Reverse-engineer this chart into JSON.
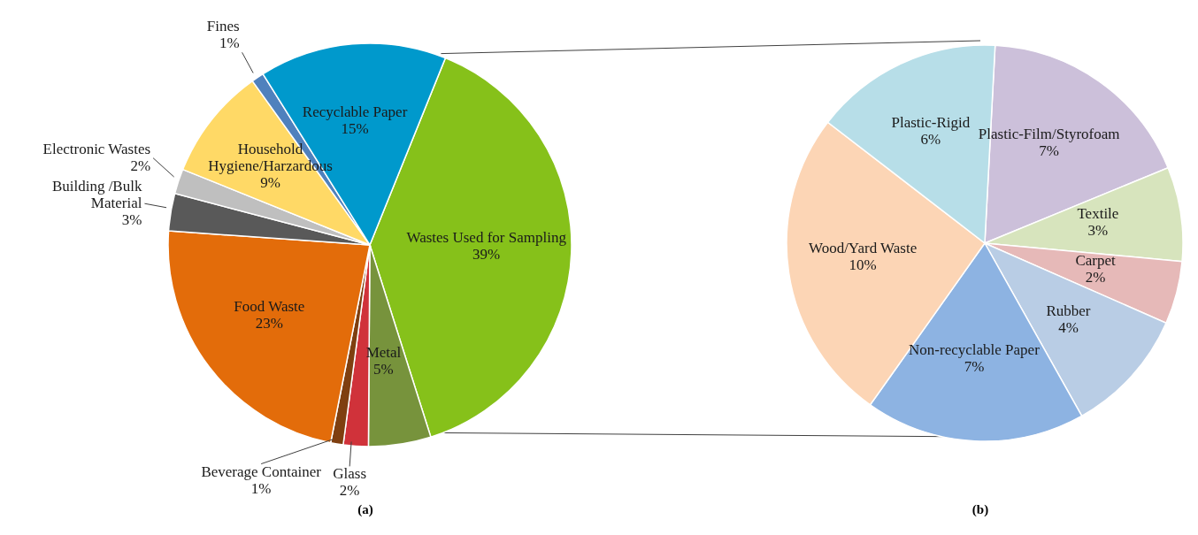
{
  "chart_data": [
    {
      "type": "pie",
      "categories": [
        "Wastes Used for Sampling",
        "Metal",
        "Glass",
        "Beverage Container",
        "Food Waste",
        "Building /Bulk Material",
        "Electronic Wastes",
        "Household Hygiene/Harzardous",
        "Fines",
        "Recyclable Paper"
      ],
      "values": [
        39,
        5,
        2,
        1,
        23,
        3,
        2,
        9,
        1,
        15
      ],
      "value_labels": [
        "39%",
        "5%",
        "2%",
        "1%",
        "23%",
        "3%",
        "2%",
        "9%",
        "1%",
        "15%"
      ],
      "colors": [
        "#86c11a",
        "#77933c",
        "#d0323a",
        "#7f3f10",
        "#e36c0a",
        "#595959",
        "#bfbfbf",
        "#ffd966",
        "#4f81bd",
        "#0099cc"
      ],
      "annotations": [
        "(a)"
      ]
    },
    {
      "type": "pie",
      "categories": [
        "Plastic-Film/Styrofoam",
        "Textile",
        "Carpet",
        "Rubber",
        "Non-recyclable Paper",
        "Wood/Yard Waste",
        "Plastic-Rigid"
      ],
      "values": [
        7,
        3,
        2,
        4,
        7,
        10,
        6
      ],
      "value_labels": [
        "7%",
        "3%",
        "2%",
        "4%",
        "7%",
        "10%",
        "6%"
      ],
      "colors": [
        "#ccc0da",
        "#d7e4bd",
        "#e6b9b8",
        "#b9cde5",
        "#8db3e2",
        "#fcd5b5",
        "#b7dee8"
      ],
      "annotations": [
        "(b)"
      ]
    }
  ]
}
